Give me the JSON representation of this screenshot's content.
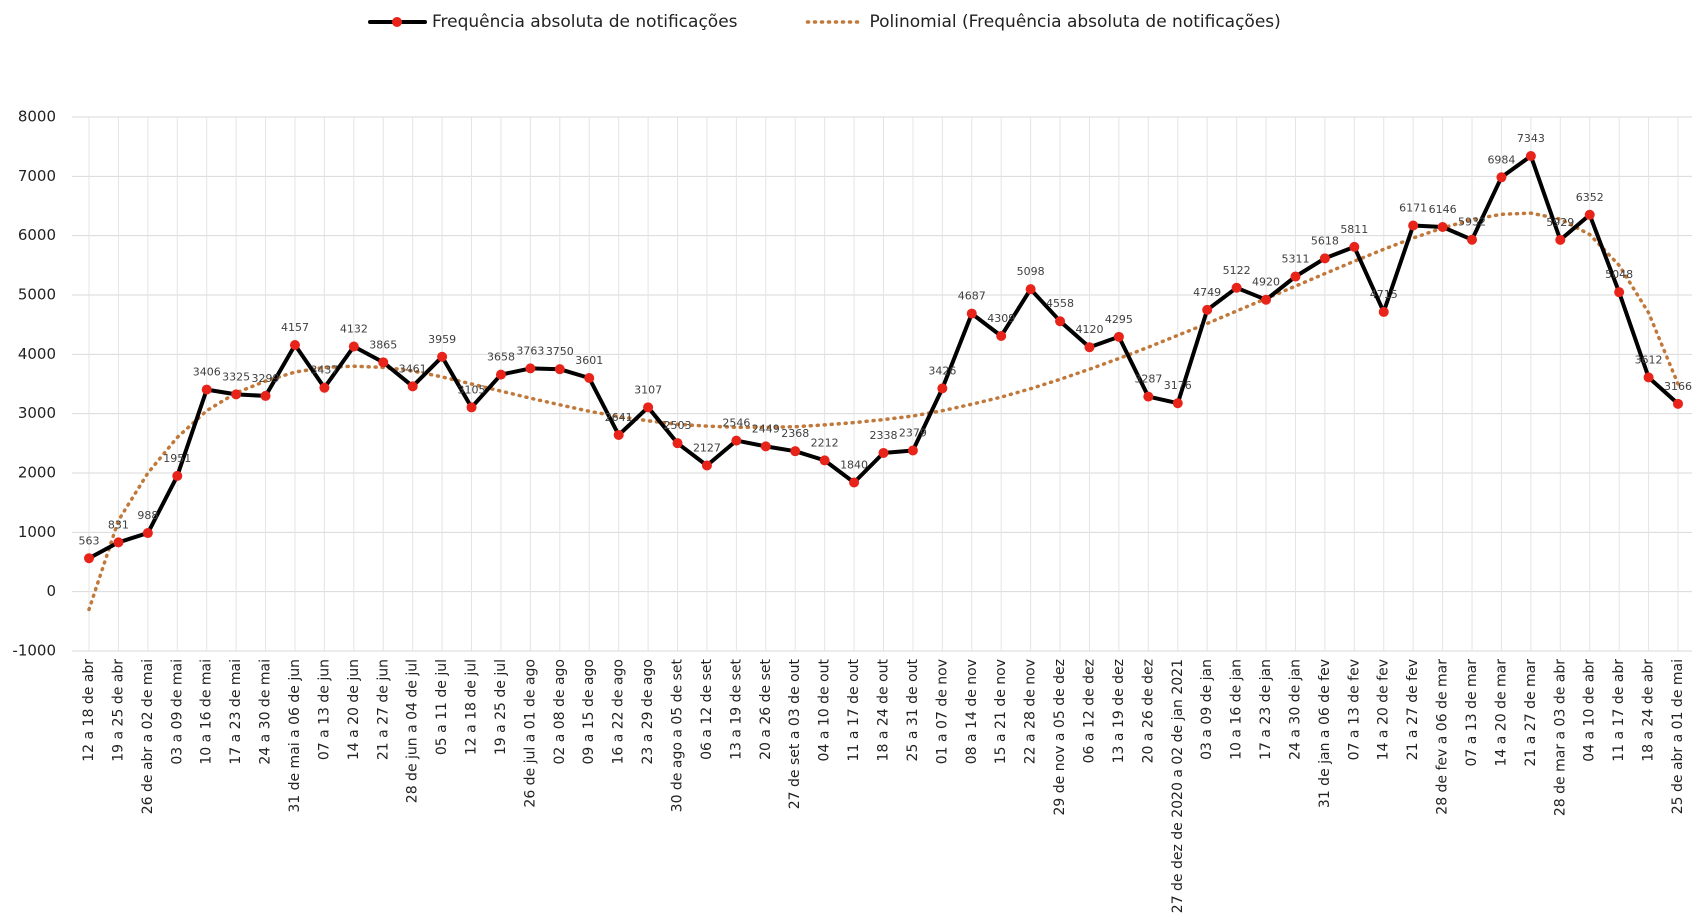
{
  "chart_data": {
    "type": "line",
    "categories": [
      "12 a 18 de abr",
      "19 a 25 de abr",
      "26 de abr a 02 de mai",
      "03 a 09 de mai",
      "10 a 16 de mai",
      "17 a 23 de mai",
      "24 a 30 de mai",
      "31 de mai a 06 de jun",
      "07 a 13 de jun",
      "14 a 20 de jun",
      "21 a 27 de jun",
      "28 de jun a 04 de jul",
      "05 a 11 de jul",
      "12 a 18 de jul",
      "19 a 25 de jul",
      "26 de jul a 01 de ago",
      "02 a 08 de ago",
      "09 a 15 de ago",
      "16 a 22 de ago",
      "23 a 29 de ago",
      "30 de ago a 05 de set",
      "06 a 12 de set",
      "13 a 19 de set",
      "20 a 26 de set",
      "27 de set a 03 de out",
      "04 a 10 de out",
      "11 a 17 de out",
      "18 a 24 de out",
      "25 a 31 de out",
      "01 a 07 de nov",
      "08 a 14 de nov",
      "15 a 21 de nov",
      "22 a 28 de nov",
      "29 de nov a 05 de dez",
      "06 a 12 de dez",
      "13 a 19 de dez",
      "20 a 26 de dez",
      "27 de dez de 2020 a 02 de jan 2021",
      "03 a 09 de jan",
      "10 a 16 de jan",
      "17 a 23 de jan",
      "24 a 30 de jan",
      "31 de jan a 06 de fev",
      "07 a 13 de fev",
      "14 a 20 de fev",
      "21 a 27 de fev",
      "28 de fev a 06 de mar",
      "07 a 13 de mar",
      "14 a 20 de mar",
      "21 a 27 de mar",
      "28 de mar a 03 de abr",
      "04 a 10 de abr",
      "11 a 17 de abr",
      "18 a 24 de abr",
      "25 de abr a 01 de mai"
    ],
    "series": [
      {
        "name": "Frequência absoluta de notificações",
        "color": "#000000",
        "marker_color": "#e8231a",
        "line_style": "solid",
        "data_labels": true,
        "values": [
          563,
          831,
          988,
          1951,
          3406,
          3325,
          3299,
          4157,
          3437,
          4132,
          3865,
          3461,
          3959,
          3105,
          3658,
          3763,
          3750,
          3601,
          2641,
          3107,
          2503,
          2127,
          2546,
          2449,
          2368,
          2212,
          1840,
          2338,
          2379,
          3426,
          4687,
          4309,
          5098,
          4558,
          4120,
          4295,
          3287,
          3176,
          4749,
          5122,
          4920,
          5311,
          5618,
          5811,
          4715,
          6171,
          6146,
          5932,
          6984,
          7343,
          5929,
          6352,
          5048,
          3612,
          3166
        ]
      },
      {
        "name": "Polinomial (Frequência absoluta de notificações)",
        "color": "#c0793a",
        "line_style": "dotted",
        "data_labels": false,
        "values": [
          -300,
          1200,
          2000,
          2600,
          3050,
          3350,
          3550,
          3700,
          3780,
          3800,
          3780,
          3720,
          3620,
          3500,
          3380,
          3260,
          3150,
          3040,
          2950,
          2880,
          2820,
          2790,
          2770,
          2770,
          2780,
          2810,
          2850,
          2900,
          2960,
          3050,
          3160,
          3280,
          3420,
          3580,
          3750,
          3930,
          4120,
          4320,
          4520,
          4730,
          4940,
          5150,
          5360,
          5570,
          5770,
          5960,
          6130,
          6270,
          6360,
          6380,
          6280,
          6020,
          5500,
          4700,
          3500
        ]
      }
    ],
    "ylim": [
      -1000,
      8000
    ],
    "yticks": [
      -1000,
      0,
      1000,
      2000,
      3000,
      4000,
      5000,
      6000,
      7000,
      8000
    ],
    "grid": true,
    "legend": "top"
  }
}
